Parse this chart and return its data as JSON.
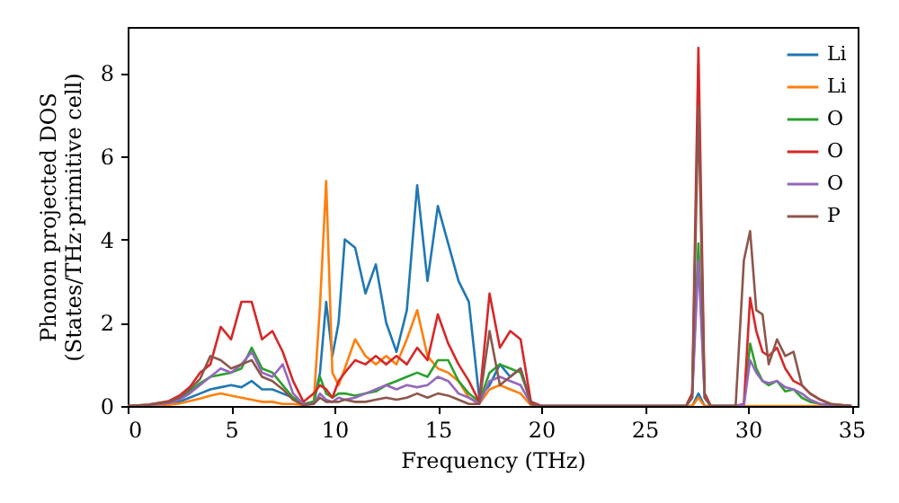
{
  "chart_data": {
    "type": "line",
    "xlabel": "Frequency (THz)",
    "ylabel": "Phonon projected DOS\n(States/THz·primitive cell)",
    "x": [
      0,
      1,
      2,
      2.5,
      3,
      3.5,
      4,
      4.5,
      5,
      5.5,
      6,
      6.5,
      7,
      7.5,
      8,
      8.5,
      9,
      9.3,
      9.6,
      9.9,
      10.2,
      10.5,
      11,
      11.5,
      12,
      12.5,
      13,
      13.5,
      14,
      14.5,
      15,
      15.5,
      16,
      16.5,
      17,
      17.5,
      18,
      18.5,
      19,
      19.5,
      20,
      27,
      27.3,
      27.6,
      27.9,
      28.2,
      29.4,
      29.8,
      30.1,
      30.4,
      30.7,
      31,
      31.4,
      31.8,
      32.2,
      32.6,
      33,
      33.5,
      34,
      35
    ],
    "series": [
      {
        "name": "Li",
        "color": "#1f77b4",
        "values": [
          0,
          0.01,
          0.05,
          0.1,
          0.2,
          0.3,
          0.4,
          0.45,
          0.5,
          0.45,
          0.6,
          0.4,
          0.4,
          0.3,
          0.2,
          0.05,
          0.1,
          0.8,
          2.5,
          1.2,
          2.0,
          4.0,
          3.8,
          2.7,
          3.4,
          2.0,
          1.3,
          2.3,
          5.3,
          3.0,
          4.8,
          3.9,
          3.0,
          2.5,
          0.2,
          0.5,
          1.0,
          0.7,
          0.9,
          0.1,
          0,
          0,
          0,
          0.3,
          0,
          0,
          0,
          null,
          null,
          null,
          null,
          null,
          null,
          null,
          null,
          null,
          null,
          null,
          null,
          null
        ]
      },
      {
        "name": "Li",
        "color": "#ff7f0e",
        "values": [
          0,
          0.01,
          0.03,
          0.06,
          0.12,
          0.18,
          0.25,
          0.3,
          0.25,
          0.2,
          0.15,
          0.1,
          0.1,
          0.05,
          0.05,
          0.02,
          0.1,
          2.4,
          5.4,
          0.8,
          0.5,
          0.9,
          1.6,
          1.2,
          1.0,
          1.2,
          1.0,
          1.6,
          2.3,
          1.2,
          0.9,
          0.8,
          0.6,
          0.2,
          0.05,
          0.4,
          0.5,
          0.4,
          0.3,
          0.02,
          0,
          0,
          0,
          0.2,
          0,
          0,
          0,
          0,
          0,
          0,
          0,
          0,
          0,
          0,
          0,
          0,
          0,
          0,
          0,
          0
        ]
      },
      {
        "name": "O",
        "color": "#2ca02c",
        "values": [
          null,
          null,
          0.08,
          0.15,
          0.35,
          0.55,
          0.7,
          0.75,
          0.8,
          0.9,
          1.4,
          0.9,
          0.8,
          0.5,
          0.2,
          0.05,
          0.1,
          0.7,
          0.3,
          0.2,
          0.3,
          0.3,
          0.25,
          0.3,
          0.35,
          0.5,
          0.6,
          0.7,
          0.8,
          0.7,
          1.1,
          1.1,
          0.6,
          0.3,
          0.1,
          0.8,
          1.0,
          0.9,
          0.8,
          0.1,
          0,
          0,
          0.3,
          3.9,
          0.3,
          0,
          0,
          0.02,
          1.5,
          0.9,
          0.6,
          0.5,
          0.6,
          0.35,
          0.4,
          0.2,
          0.1,
          0.05,
          0.02,
          0
        ]
      },
      {
        "name": "O",
        "color": "#d62728",
        "values": [
          0,
          0.03,
          0.12,
          0.25,
          0.45,
          0.8,
          1.0,
          1.9,
          1.6,
          2.5,
          2.5,
          1.6,
          1.8,
          1.3,
          0.6,
          0.1,
          0.3,
          0.5,
          0.4,
          0.2,
          0.6,
          0.8,
          1.1,
          1.0,
          1.2,
          1.0,
          1.2,
          1.0,
          1.4,
          1.1,
          2.2,
          1.5,
          1.0,
          0.6,
          0.1,
          2.7,
          1.4,
          1.8,
          1.6,
          0.1,
          0,
          0,
          0.3,
          8.6,
          0.3,
          0,
          0,
          0.05,
          2.6,
          1.8,
          1.3,
          1.2,
          1.4,
          0.9,
          0.6,
          0.5,
          0.3,
          0.15,
          0.05,
          0
        ]
      },
      {
        "name": "O",
        "color": "#9467bd",
        "values": [
          0,
          0.02,
          0.07,
          0.15,
          0.3,
          0.5,
          0.7,
          0.9,
          0.8,
          1.0,
          1.3,
          0.8,
          0.7,
          1.0,
          0.3,
          0.05,
          0.05,
          0.3,
          0.15,
          0.1,
          0.2,
          0.15,
          0.2,
          0.3,
          0.4,
          0.5,
          0.4,
          0.5,
          0.45,
          0.5,
          0.7,
          0.6,
          0.3,
          0.2,
          0.05,
          0.6,
          0.7,
          0.6,
          0.5,
          0.05,
          0,
          0,
          0.2,
          3.5,
          0.2,
          0,
          0,
          0.02,
          1.1,
          0.8,
          0.6,
          0.55,
          0.6,
          0.45,
          0.4,
          0.3,
          0.15,
          0.05,
          0.02,
          0
        ]
      },
      {
        "name": "P",
        "color": "#8c564b",
        "values": [
          0,
          0.03,
          0.1,
          0.2,
          0.4,
          0.65,
          1.2,
          1.1,
          0.9,
          1.0,
          1.1,
          0.7,
          0.6,
          0.4,
          0.15,
          0.02,
          0.05,
          0.2,
          0.1,
          0.1,
          0.1,
          0.15,
          0.1,
          0.1,
          0.15,
          0.2,
          0.15,
          0.2,
          0.3,
          0.2,
          0.3,
          0.25,
          0.15,
          0.05,
          0.05,
          1.8,
          0.5,
          0.7,
          0.9,
          0.05,
          0,
          0,
          0.2,
          7.2,
          0.2,
          0,
          0,
          3.5,
          4.2,
          2.3,
          2.2,
          1.0,
          1.6,
          1.2,
          1.3,
          0.5,
          0.3,
          0.15,
          0.05,
          0
        ]
      }
    ],
    "xlim": [
      0,
      35.3
    ],
    "xticks": [
      0,
      5,
      10,
      15,
      20,
      25,
      30,
      35
    ],
    "ylim": [
      0,
      9.1
    ],
    "yticks": [
      0,
      2,
      4,
      6,
      8
    ],
    "legend": "top right",
    "grid": false
  }
}
